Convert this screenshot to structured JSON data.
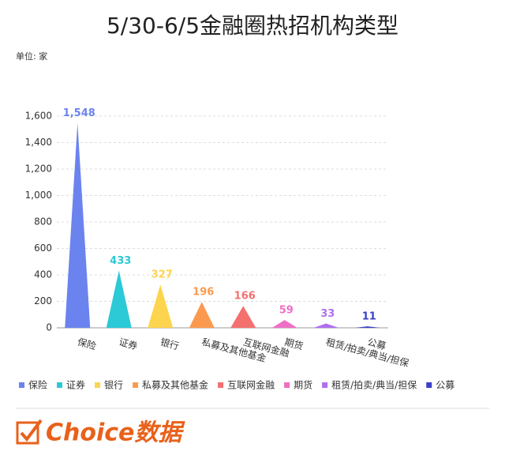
{
  "chart_data": {
    "type": "triangle-bar",
    "title": "5/30-6/5金融圈热招机构类型",
    "unit_label": "单位: 家",
    "categories": [
      "保险",
      "证券",
      "银行",
      "私募及其他基金",
      "互联网金融",
      "期货",
      "租赁/拍卖/典当/担保",
      "公募"
    ],
    "values": [
      1548,
      433,
      327,
      196,
      166,
      59,
      33,
      11
    ],
    "value_labels": [
      "1,548",
      "433",
      "327",
      "196",
      "166",
      "59",
      "33",
      "11"
    ],
    "colors": [
      "#6b83ee",
      "#2cc9d6",
      "#fdd44e",
      "#fb9a4f",
      "#f4706f",
      "#ee6fc4",
      "#b06fef",
      "#3b3fc9"
    ],
    "ylim": [
      0,
      1600
    ],
    "yticks": [
      0,
      200,
      400,
      600,
      800,
      {
        "value": 1000,
        "label": "1,000"
      },
      {
        "value": 1200,
        "label": "1,200"
      },
      {
        "value": 1400,
        "label": "1,400"
      },
      {
        "value": 1600,
        "label": "1,600"
      }
    ],
    "grid": true,
    "legend": "bottom"
  },
  "footer": {
    "brand": "Choice数据"
  }
}
